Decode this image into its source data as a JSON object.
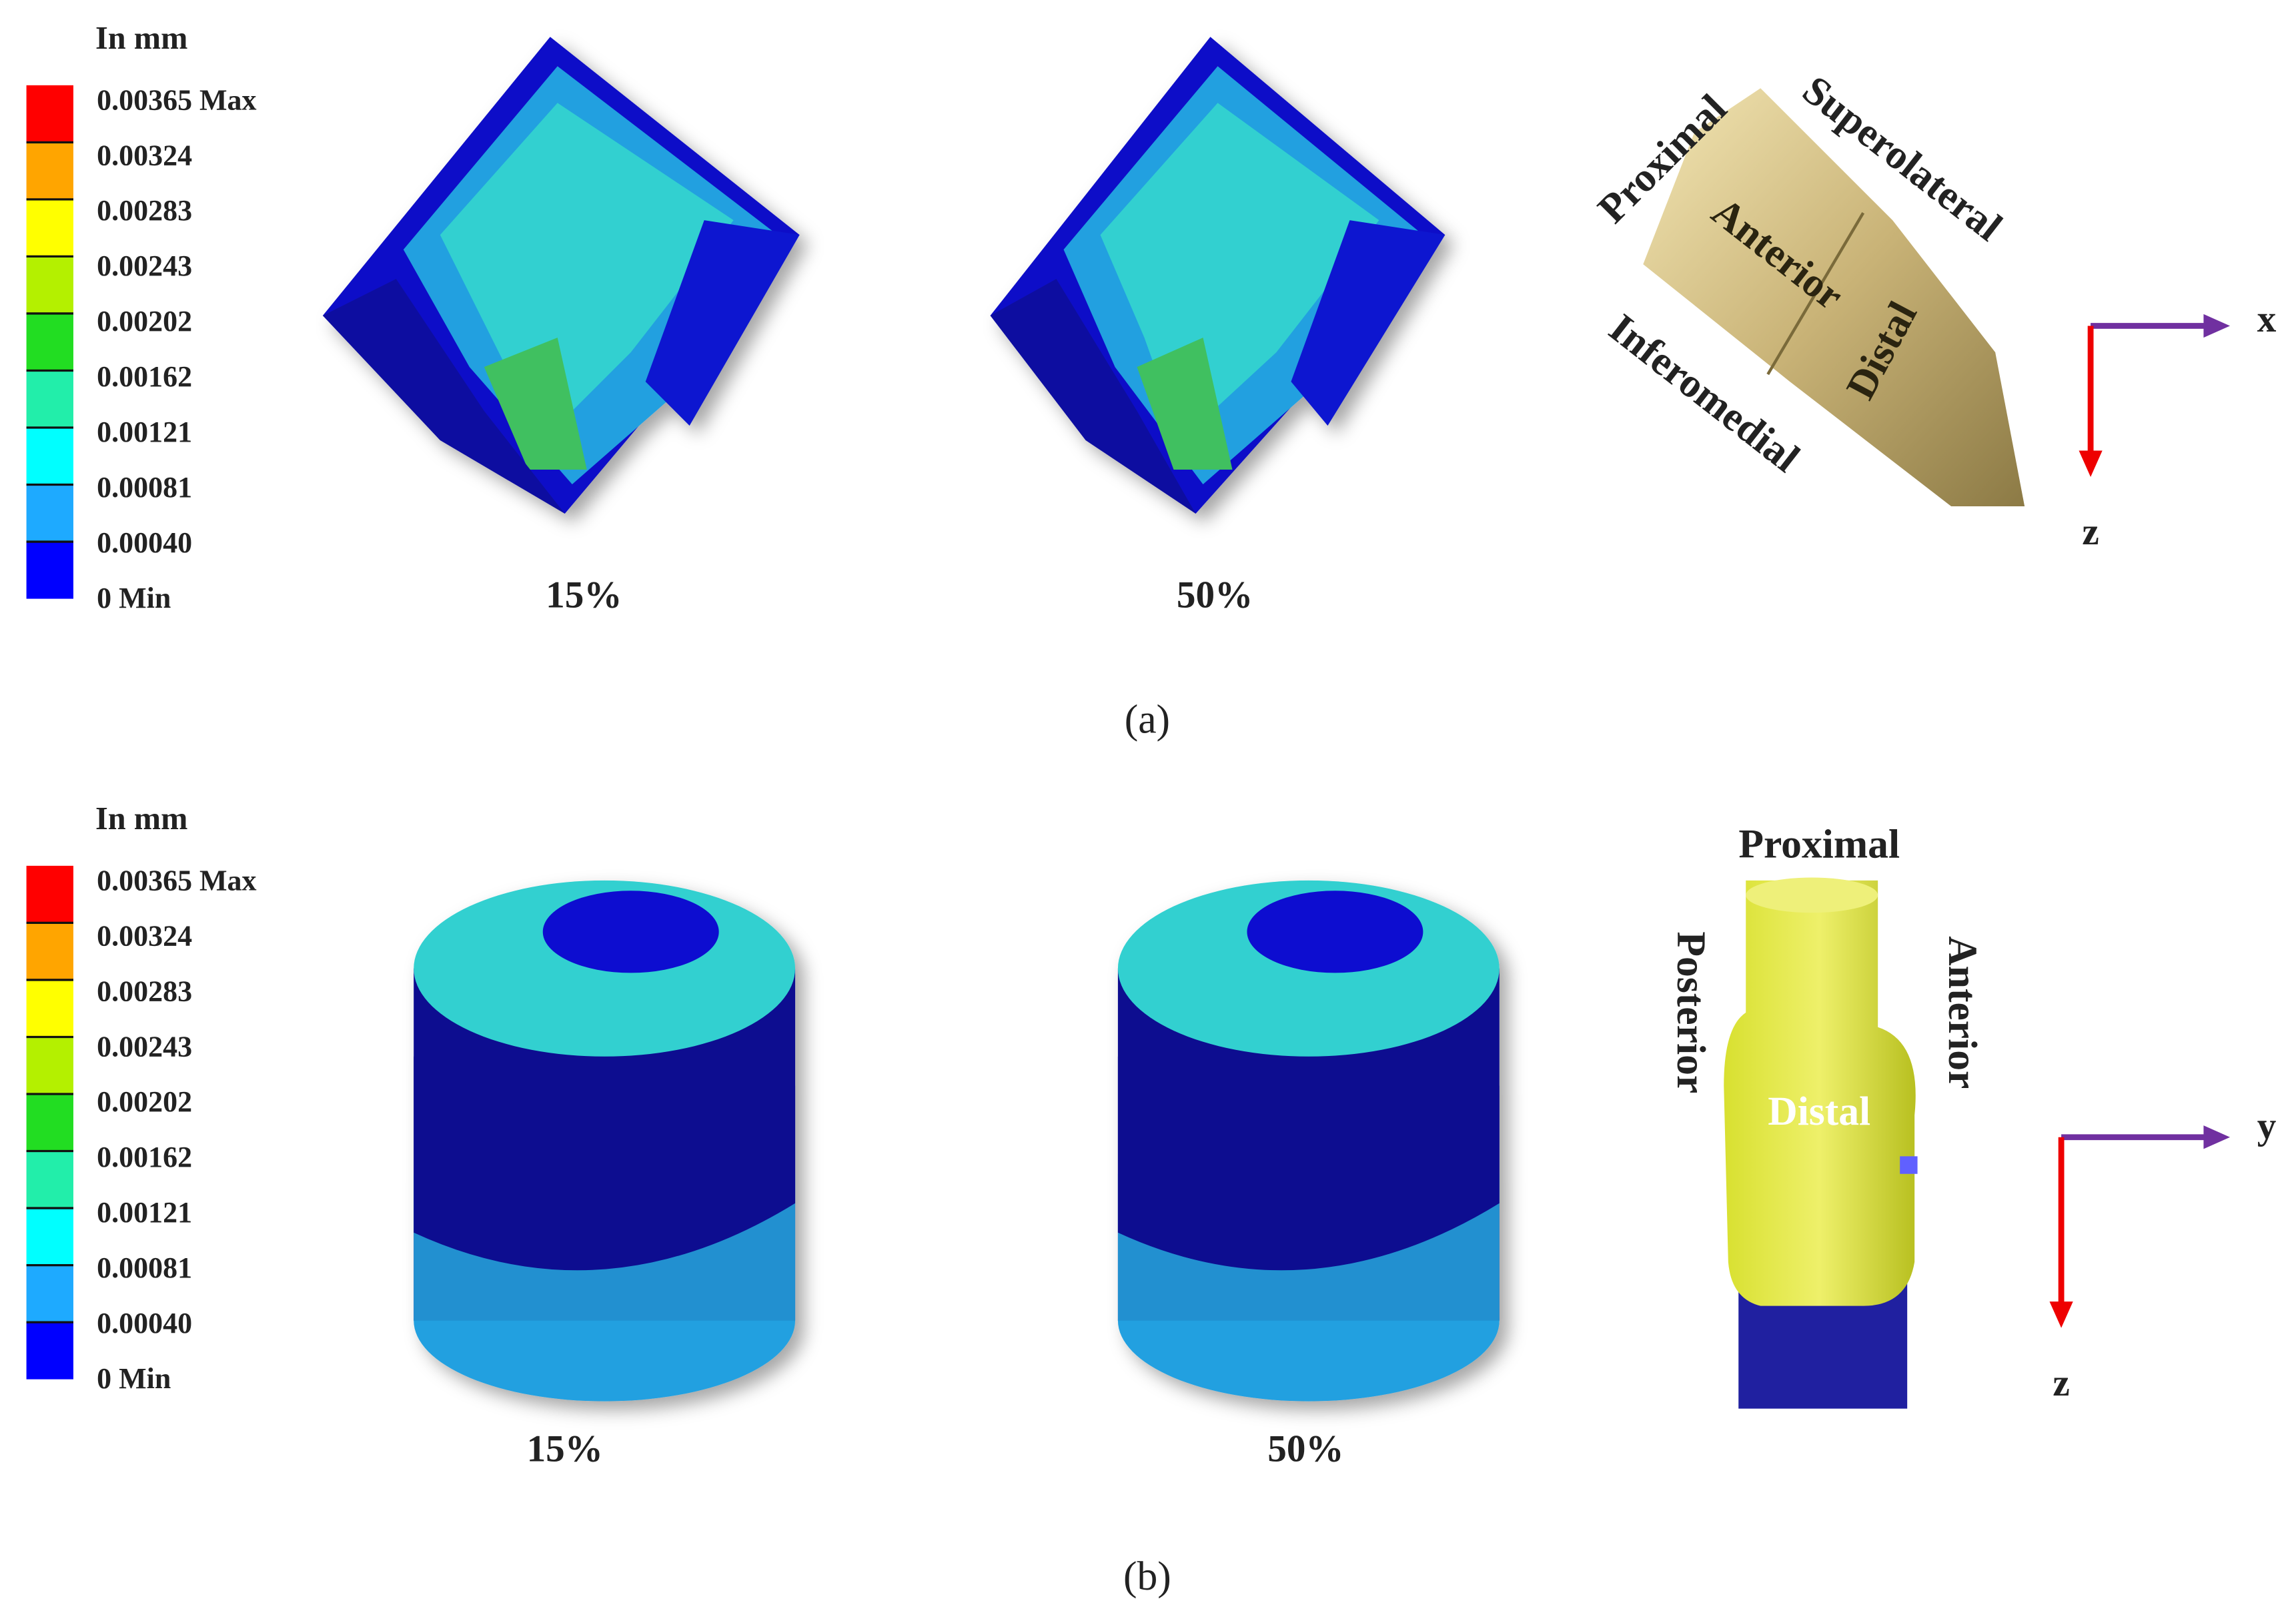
{
  "panels": [
    {
      "label": "(a)",
      "legend": {
        "title": "In mm",
        "labels": [
          "0.00365 Max",
          "0.00324",
          "0.00283",
          "0.00243",
          "0.00202",
          "0.00162",
          "0.00121",
          "0.00081",
          "0.00040",
          "0 Min"
        ],
        "colors": [
          "#ff0000",
          "#ffa500",
          "#ffff00",
          "#b4f000",
          "#22dd22",
          "#22eeaa",
          "#00ffff",
          "#1eaaff",
          "#0000ff"
        ]
      },
      "captions": [
        "15%",
        "50%"
      ],
      "orientation": [
        "Proximal",
        "Superolateral",
        "Anterior",
        "Distal",
        "Inferomedial"
      ],
      "axes": [
        "x",
        "z"
      ]
    },
    {
      "label": "(b)",
      "legend": {
        "title": "In mm",
        "labels": [
          "0.00365 Max",
          "0.00324",
          "0.00283",
          "0.00243",
          "0.00202",
          "0.00162",
          "0.00121",
          "0.00081",
          "0.00040",
          "0 Min"
        ],
        "colors": [
          "#ff0000",
          "#ffa500",
          "#ffff00",
          "#b4f000",
          "#22dd22",
          "#22eeaa",
          "#00ffff",
          "#1eaaff",
          "#0000ff"
        ]
      },
      "captions": [
        "15%",
        "50%"
      ],
      "orientation": [
        "Proximal",
        "Posterior",
        "Anterior",
        "Distal"
      ],
      "axes": [
        "y",
        "z"
      ]
    }
  ]
}
